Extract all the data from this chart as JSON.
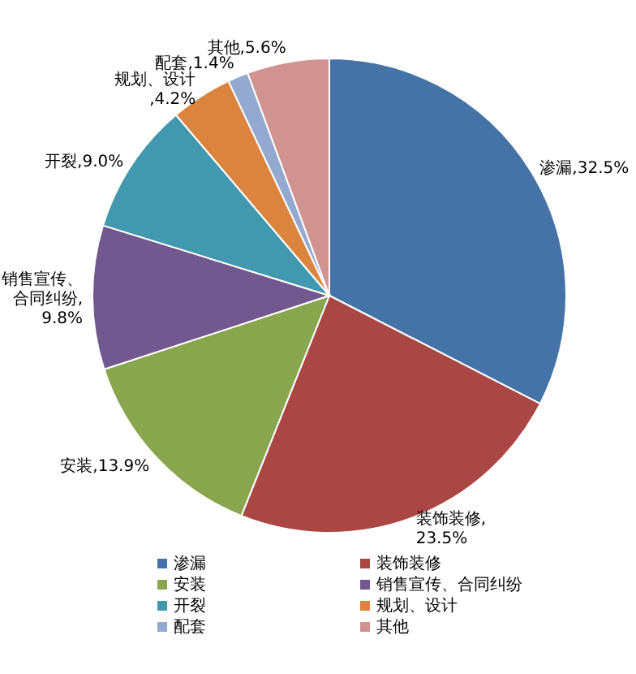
{
  "chart_data": {
    "type": "pie",
    "categories": [
      "渗漏",
      "装饰装修",
      "安装",
      "销售宣传、合同纠纷",
      "开裂",
      "规划、设计",
      "配套",
      "其他"
    ],
    "values": [
      32.5,
      23.5,
      13.9,
      9.8,
      9.0,
      4.2,
      1.4,
      5.6
    ],
    "colors": [
      "#4572a7",
      "#aa4643",
      "#89a54e",
      "#71588f",
      "#4198af",
      "#db843d",
      "#93a9cf",
      "#d19392"
    ],
    "value_labels": [
      "渗漏,32.5%",
      "装饰装修,23.5%",
      "安装,13.9%",
      "销售宣传、合同纠纷,9.8%",
      "开裂,9.0%",
      "规划、设计,4.2%",
      "配套,1.4%",
      "其他,5.6%"
    ],
    "legend": "bottom"
  }
}
